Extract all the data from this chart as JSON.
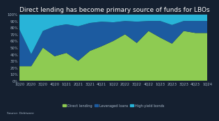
{
  "quarters": [
    "1Q20",
    "2Q20",
    "3Q20",
    "4Q20",
    "1Q21",
    "2Q21",
    "3Q21",
    "4Q21",
    "1Q22",
    "2Q22",
    "3Q22",
    "4Q22",
    "1Q23",
    "2Q23",
    "3Q23",
    "4Q23",
    "1Q24"
  ],
  "direct_lending": [
    22,
    22,
    50,
    37,
    42,
    30,
    45,
    52,
    60,
    70,
    57,
    75,
    65,
    56,
    75,
    72,
    72
  ],
  "leveraged_loans": [
    55,
    18,
    25,
    45,
    43,
    52,
    42,
    37,
    28,
    20,
    32,
    15,
    25,
    28,
    15,
    18,
    18
  ],
  "high_yield_bonds": [
    23,
    60,
    25,
    18,
    15,
    18,
    13,
    11,
    12,
    10,
    11,
    10,
    10,
    16,
    10,
    10,
    10
  ],
  "colors": {
    "direct_lending": "#8ecb52",
    "leveraged_loans": "#1c5ba0",
    "high_yield_bonds": "#28b4d8"
  },
  "title": "Direct lending has become primary source of funds for LBOs",
  "title_fontsize": 6.5,
  "bg_color": "#152030",
  "text_color": "#aabbcc",
  "legend_labels": [
    "Direct lending",
    "Leveraged loans",
    "High-yield bonds"
  ],
  "source": "Source: Debtware",
  "yticks": [
    0,
    10,
    20,
    30,
    40,
    50,
    60,
    70,
    80,
    90,
    100
  ]
}
